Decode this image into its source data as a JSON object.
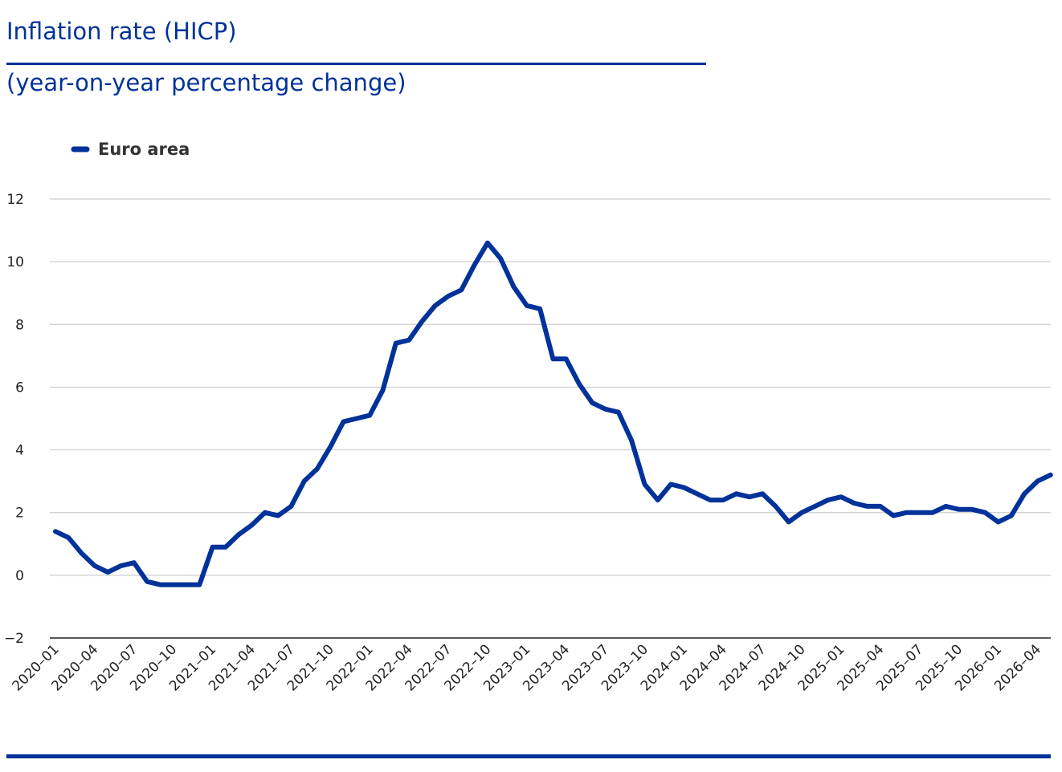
{
  "header": {
    "title": "Inflation rate (HICP)",
    "subtitle": "(year-on-year percentage change)"
  },
  "colors": {
    "series": "#003299",
    "grid": "#cccccc",
    "axis": "#222222",
    "text": "#222222"
  },
  "chart_data": {
    "type": "line",
    "title": "Inflation rate (HICP)",
    "subtitle": "(year-on-year percentage change)",
    "xlabel": "",
    "ylabel": "",
    "ylim": [
      -2,
      12
    ],
    "yticks": [
      -2,
      0,
      2,
      4,
      6,
      8,
      10,
      12
    ],
    "grid": true,
    "legend": "top-left",
    "x_tick_labels": [
      "2020-01",
      "2020-04",
      "2020-07",
      "2020-10",
      "2021-01",
      "2021-04",
      "2021-07",
      "2021-10",
      "2022-01",
      "2022-04",
      "2022-07",
      "2022-10",
      "2023-01",
      "2023-04",
      "2023-07",
      "2023-10",
      "2024-01",
      "2024-04",
      "2024-07",
      "2024-10",
      "2025-01",
      "2025-04",
      "2025-07",
      "2025-10",
      "2026-01",
      "2026-04"
    ],
    "x": [
      "2020-01",
      "2020-02",
      "2020-03",
      "2020-04",
      "2020-05",
      "2020-06",
      "2020-07",
      "2020-08",
      "2020-09",
      "2020-10",
      "2020-11",
      "2020-12",
      "2021-01",
      "2021-02",
      "2021-03",
      "2021-04",
      "2021-05",
      "2021-06",
      "2021-07",
      "2021-08",
      "2021-09",
      "2021-10",
      "2021-11",
      "2021-12",
      "2022-01",
      "2022-02",
      "2022-03",
      "2022-04",
      "2022-05",
      "2022-06",
      "2022-07",
      "2022-08",
      "2022-09",
      "2022-10",
      "2022-11",
      "2022-12",
      "2023-01",
      "2023-02",
      "2023-03",
      "2023-04",
      "2023-05",
      "2023-06",
      "2023-07",
      "2023-08",
      "2023-09",
      "2023-10",
      "2023-11",
      "2023-12",
      "2024-01",
      "2024-02",
      "2024-03",
      "2024-04",
      "2024-05",
      "2024-06",
      "2024-07",
      "2024-08",
      "2024-09",
      "2024-10",
      "2024-11",
      "2024-12",
      "2025-01",
      "2025-02",
      "2025-03",
      "2025-04",
      "2025-05",
      "2025-06",
      "2025-07",
      "2025-08",
      "2025-09",
      "2025-10",
      "2025-11",
      "2025-12",
      "2026-01",
      "2026-02",
      "2026-03",
      "2026-04",
      "2026-05"
    ],
    "series": [
      {
        "name": "Euro area",
        "color": "#003299",
        "values": [
          1.4,
          1.2,
          0.7,
          0.3,
          0.1,
          0.3,
          0.4,
          -0.2,
          -0.3,
          -0.3,
          -0.3,
          -0.3,
          0.9,
          0.9,
          1.3,
          1.6,
          2.0,
          1.9,
          2.2,
          3.0,
          3.4,
          4.1,
          4.9,
          5.0,
          5.1,
          5.9,
          7.4,
          7.5,
          8.1,
          8.6,
          8.9,
          9.1,
          9.9,
          10.6,
          10.1,
          9.2,
          8.6,
          8.5,
          6.9,
          6.9,
          6.1,
          5.5,
          5.3,
          5.2,
          4.3,
          2.9,
          2.4,
          2.9,
          2.8,
          2.6,
          2.4,
          2.4,
          2.6,
          2.5,
          2.6,
          2.2,
          1.7,
          2.0,
          2.2,
          2.4,
          2.5,
          2.3,
          2.2,
          2.2,
          1.9,
          2.0,
          2.0,
          2.0,
          2.2,
          2.1,
          2.1,
          2.0,
          1.7,
          1.9,
          2.6,
          3.0,
          3.2
        ]
      }
    ]
  }
}
